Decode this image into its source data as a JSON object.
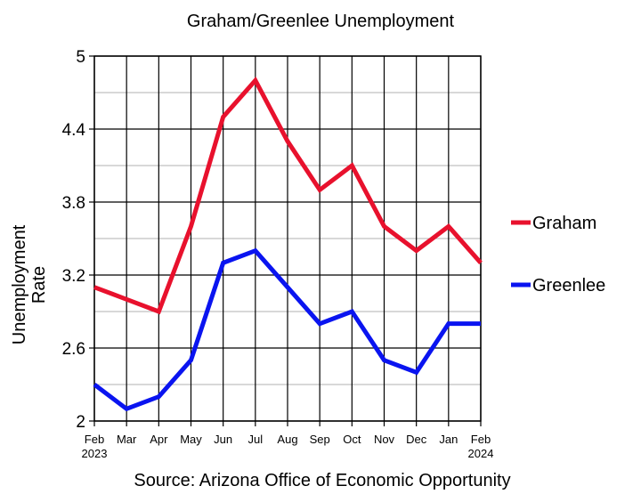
{
  "chart_data": {
    "type": "line",
    "title": "Graham/Greenlee Unemployment",
    "source": "Source: Arizona Office of Economic Opportunity",
    "y_label": "Unemployment Rate",
    "categories": [
      "Feb 2023",
      "Mar",
      "Apr",
      "May",
      "Jun",
      "Jul",
      "Aug",
      "Sep",
      "Oct",
      "Nov",
      "Dec",
      "Jan",
      "Feb 2024"
    ],
    "series": [
      {
        "name": "Graham",
        "color": "#e8112d",
        "values": [
          3.1,
          3.0,
          2.9,
          3.6,
          4.5,
          4.8,
          4.3,
          3.9,
          4.1,
          3.6,
          3.4,
          3.6,
          3.3
        ]
      },
      {
        "name": "Greenlee",
        "color": "#0a14f0",
        "values": [
          2.3,
          2.1,
          2.2,
          2.5,
          3.3,
          3.4,
          3.1,
          2.8,
          2.9,
          2.5,
          2.4,
          2.8,
          2.8
        ]
      }
    ],
    "ylim": [
      2,
      5
    ],
    "yticks": [
      2,
      2.6,
      3.2,
      3.8,
      4.4,
      5
    ],
    "yminorticks": [
      2.3,
      2.9,
      3.5,
      4.1,
      4.7
    ],
    "grid": true,
    "legend": "right"
  }
}
